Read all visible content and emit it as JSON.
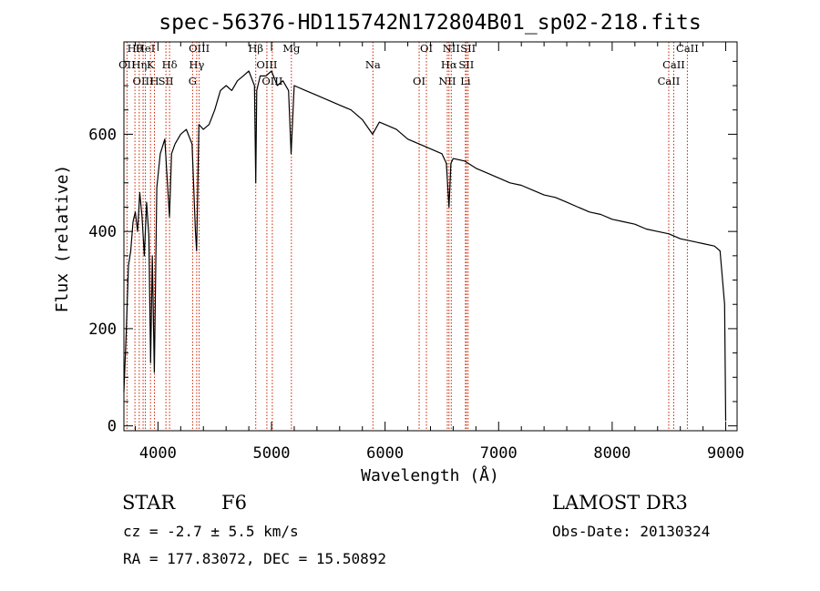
{
  "chart_data": {
    "type": "line",
    "title": "spec-56376-HD115742N172804B01_sp02-218.fits",
    "xlabel": "Wavelength (Å)",
    "ylabel": "Flux (relative)",
    "xlim": [
      3700,
      9100
    ],
    "ylim": [
      -10,
      790
    ],
    "xticks": [
      4000,
      5000,
      6000,
      7000,
      8000,
      9000
    ],
    "yticks": [
      0,
      200,
      400,
      600
    ],
    "grid": false,
    "series": [
      {
        "name": "flux",
        "x": [
          3700,
          3720,
          3740,
          3760,
          3780,
          3800,
          3820,
          3840,
          3860,
          3880,
          3900,
          3920,
          3935,
          3950,
          3968,
          3990,
          4020,
          4060,
          4101,
          4120,
          4150,
          4200,
          4250,
          4300,
          4330,
          4340,
          4360,
          4400,
          4450,
          4500,
          4550,
          4600,
          4650,
          4700,
          4750,
          4800,
          4850,
          4861,
          4870,
          4900,
          4950,
          5000,
          5050,
          5100,
          5150,
          5172,
          5200,
          5300,
          5400,
          5500,
          5600,
          5700,
          5800,
          5890,
          5950,
          6000,
          6100,
          6200,
          6300,
          6400,
          6500,
          6540,
          6563,
          6580,
          6600,
          6700,
          6800,
          6900,
          7000,
          7100,
          7200,
          7300,
          7400,
          7500,
          7600,
          7700,
          7800,
          7900,
          8000,
          8100,
          8200,
          8300,
          8400,
          8500,
          8600,
          8700,
          8800,
          8900,
          8950,
          8990,
          9000
        ],
        "values": [
          70,
          190,
          330,
          360,
          420,
          440,
          400,
          480,
          430,
          350,
          460,
          390,
          130,
          350,
          110,
          490,
          560,
          590,
          430,
          560,
          580,
          600,
          610,
          580,
          400,
          360,
          620,
          610,
          620,
          650,
          690,
          700,
          690,
          710,
          720,
          730,
          700,
          500,
          690,
          720,
          720,
          730,
          700,
          710,
          690,
          560,
          700,
          690,
          680,
          670,
          660,
          650,
          630,
          600,
          625,
          620,
          610,
          590,
          580,
          570,
          560,
          540,
          450,
          540,
          550,
          545,
          530,
          520,
          510,
          500,
          495,
          485,
          475,
          470,
          460,
          450,
          440,
          435,
          425,
          420,
          415,
          405,
          400,
          395,
          385,
          380,
          375,
          370,
          360,
          250,
          10
        ]
      }
    ],
    "spectral_lines": [
      {
        "name": "Hθ",
        "wavelength": 3797
      },
      {
        "name": "OII",
        "wavelength": 3727
      },
      {
        "name": "OIII",
        "wavelength": 3869
      },
      {
        "name": "Hη",
        "wavelength": 3835
      },
      {
        "name": "K",
        "wavelength": 3934
      },
      {
        "name": "HeI",
        "wavelength": 3889
      },
      {
        "name": "H",
        "wavelength": 3969
      },
      {
        "name": "Hδ",
        "wavelength": 4102
      },
      {
        "name": "SII",
        "wavelength": 4070
      },
      {
        "name": "OIII",
        "wavelength": 4363
      },
      {
        "name": "Hγ",
        "wavelength": 4341
      },
      {
        "name": "G",
        "wavelength": 4305
      },
      {
        "name": "Hβ",
        "wavelength": 4861
      },
      {
        "name": "OIII",
        "wavelength": 4959
      },
      {
        "name": "OIII",
        "wavelength": 5007
      },
      {
        "name": "Mg",
        "wavelength": 5175
      },
      {
        "name": "Na",
        "wavelength": 5893
      },
      {
        "name": "OI",
        "wavelength": 6300
      },
      {
        "name": "OI",
        "wavelength": 6364
      },
      {
        "name": "Hα",
        "wavelength": 6563
      },
      {
        "name": "NII",
        "wavelength": 6548
      },
      {
        "name": "NII",
        "wavelength": 6583
      },
      {
        "name": "SII",
        "wavelength": 6716
      },
      {
        "name": "Li",
        "wavelength": 6708
      },
      {
        "name": "SII",
        "wavelength": 6731
      },
      {
        "name": "CaII",
        "wavelength": 8542
      },
      {
        "name": "CaII",
        "wavelength": 8498
      },
      {
        "name": "CaII",
        "wavelength": 8662
      }
    ],
    "line_color": "#000000",
    "marker_color": "#cc2200"
  },
  "info": {
    "object_class": "STAR",
    "subclass": "F6",
    "redshift": "cz = -2.7 ± 5.5 km/s",
    "coords": "RA = 177.83072, DEC =  15.50892",
    "survey": "LAMOST DR3",
    "obs_date": "Obs-Date: 20130324"
  }
}
